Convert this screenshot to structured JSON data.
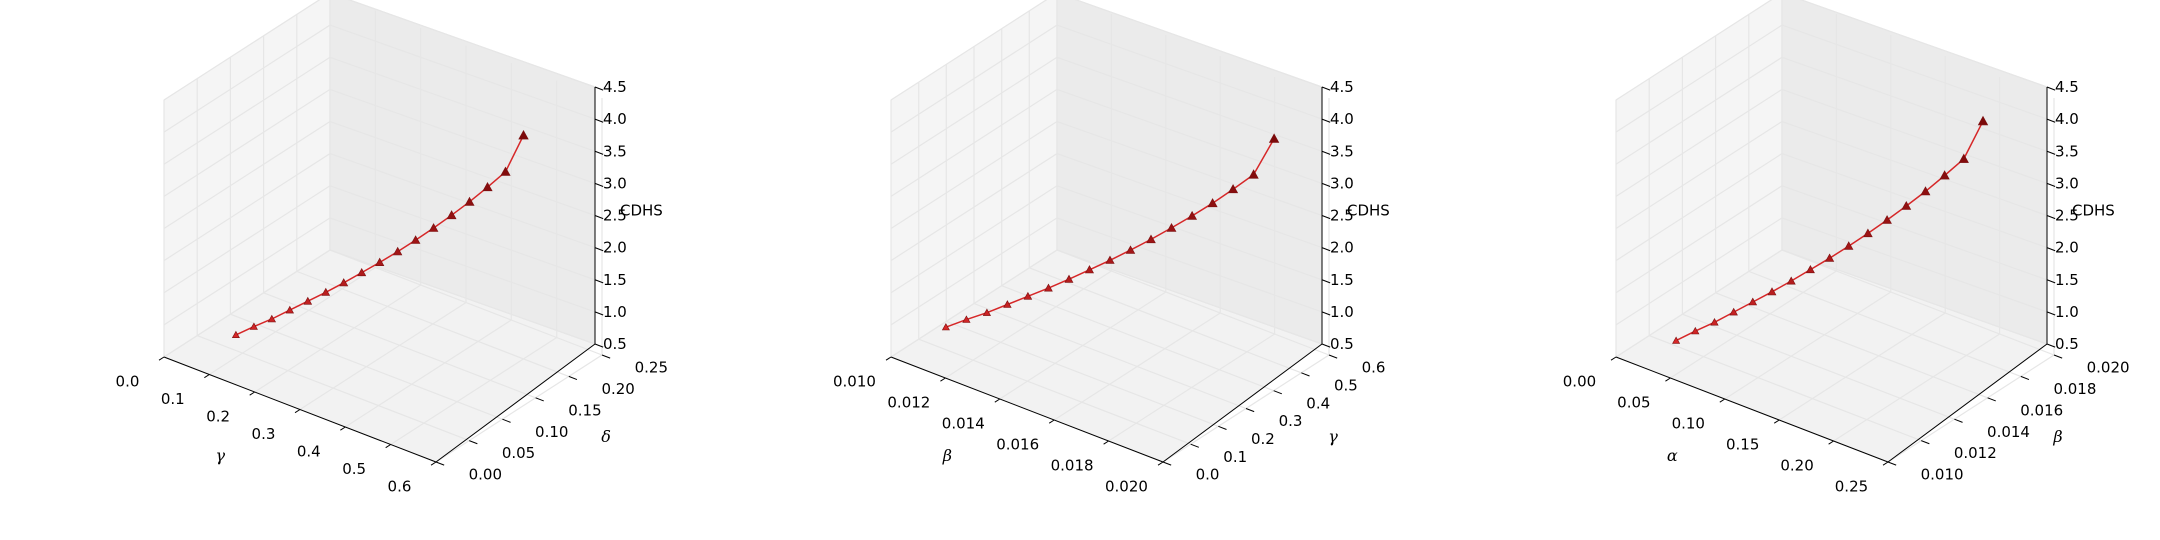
{
  "chart_data": [
    {
      "type": "line3d",
      "xlabel": "γ",
      "ylabel": "δ",
      "zlabel": "CDHS",
      "xlim": [
        0.0,
        0.6
      ],
      "ylim": [
        0.0,
        0.25
      ],
      "zlim": [
        0.5,
        4.5
      ],
      "xticks": [
        "0.0",
        "0.1",
        "0.2",
        "0.3",
        "0.4",
        "0.5",
        "0.6"
      ],
      "yticks": [
        "0.00",
        "0.05",
        "0.10",
        "0.15",
        "0.20",
        "0.25"
      ],
      "zticks": [
        "0.5",
        "1.0",
        "1.5",
        "2.0",
        "2.5",
        "3.0",
        "3.5",
        "4.0",
        "4.5"
      ],
      "series": [
        {
          "color": "#d62728",
          "marker": "triangle",
          "x": [
            0.1,
            0.125,
            0.15,
            0.175,
            0.2,
            0.225,
            0.25,
            0.275,
            0.3,
            0.325,
            0.35,
            0.375,
            0.4,
            0.425,
            0.45,
            0.475,
            0.5
          ],
          "y": [
            0.04,
            0.05,
            0.06,
            0.07,
            0.08,
            0.09,
            0.1,
            0.11,
            0.12,
            0.13,
            0.14,
            0.15,
            0.16,
            0.17,
            0.18,
            0.19,
            0.2
          ],
          "z": [
            0.85,
            0.98,
            1.1,
            1.24,
            1.38,
            1.52,
            1.67,
            1.83,
            1.99,
            2.16,
            2.34,
            2.53,
            2.73,
            2.94,
            3.17,
            3.41,
            3.98
          ]
        }
      ]
    },
    {
      "type": "line3d",
      "xlabel": "β",
      "ylabel": "γ",
      "zlabel": "CDHS",
      "xlim": [
        0.01,
        0.02
      ],
      "ylim": [
        0.0,
        0.6
      ],
      "zlim": [
        0.5,
        4.5
      ],
      "xticks": [
        "0.010",
        "0.012",
        "0.014",
        "0.016",
        "0.018",
        "0.020"
      ],
      "yticks": [
        "0.0",
        "0.1",
        "0.2",
        "0.3",
        "0.4",
        "0.5",
        "0.6"
      ],
      "zticks": [
        "0.5",
        "1.0",
        "1.5",
        "2.0",
        "2.5",
        "3.0",
        "3.5",
        "4.0",
        "4.5"
      ],
      "series": [
        {
          "color": "#d62728",
          "marker": "triangle",
          "x": [
            0.011,
            0.0115,
            0.012,
            0.0125,
            0.013,
            0.0135,
            0.014,
            0.0145,
            0.015,
            0.0155,
            0.016,
            0.0165,
            0.017,
            0.0175,
            0.018,
            0.0185,
            0.019
          ],
          "y": [
            0.1,
            0.125,
            0.15,
            0.175,
            0.2,
            0.225,
            0.25,
            0.275,
            0.3,
            0.325,
            0.35,
            0.375,
            0.4,
            0.425,
            0.45,
            0.475,
            0.5
          ],
          "z": [
            0.85,
            0.98,
            1.1,
            1.24,
            1.38,
            1.52,
            1.67,
            1.83,
            1.99,
            2.16,
            2.34,
            2.53,
            2.73,
            2.94,
            3.17,
            3.41,
            3.98
          ]
        }
      ]
    },
    {
      "type": "line3d",
      "xlabel": "α",
      "ylabel": "β",
      "zlabel": "CDHS",
      "xlim": [
        0.0,
        0.25
      ],
      "ylim": [
        0.01,
        0.02
      ],
      "zlim": [
        0.5,
        4.5
      ],
      "xticks": [
        "0.00",
        "0.05",
        "0.10",
        "0.15",
        "0.20",
        "0.25"
      ],
      "yticks": [
        "0.010",
        "0.012",
        "0.014",
        "0.016",
        "0.018",
        "0.020"
      ],
      "zticks": [
        "0.5",
        "1.0",
        "1.5",
        "2.0",
        "2.5",
        "3.0",
        "3.5",
        "4.0",
        "4.5"
      ],
      "series": [
        {
          "color": "#d62728",
          "marker": "triangle",
          "x": [
            0.04,
            0.05,
            0.06,
            0.07,
            0.08,
            0.09,
            0.1,
            0.11,
            0.12,
            0.13,
            0.14,
            0.15,
            0.16,
            0.17,
            0.18,
            0.19,
            0.2
          ],
          "y": [
            0.011,
            0.0115,
            0.012,
            0.0125,
            0.013,
            0.0135,
            0.014,
            0.0145,
            0.015,
            0.0155,
            0.016,
            0.0165,
            0.017,
            0.0175,
            0.018,
            0.0185,
            0.019
          ],
          "z": [
            0.85,
            0.98,
            1.1,
            1.24,
            1.38,
            1.52,
            1.67,
            1.83,
            1.99,
            2.16,
            2.34,
            2.53,
            2.73,
            2.94,
            3.17,
            3.41,
            3.98
          ]
        }
      ]
    }
  ]
}
